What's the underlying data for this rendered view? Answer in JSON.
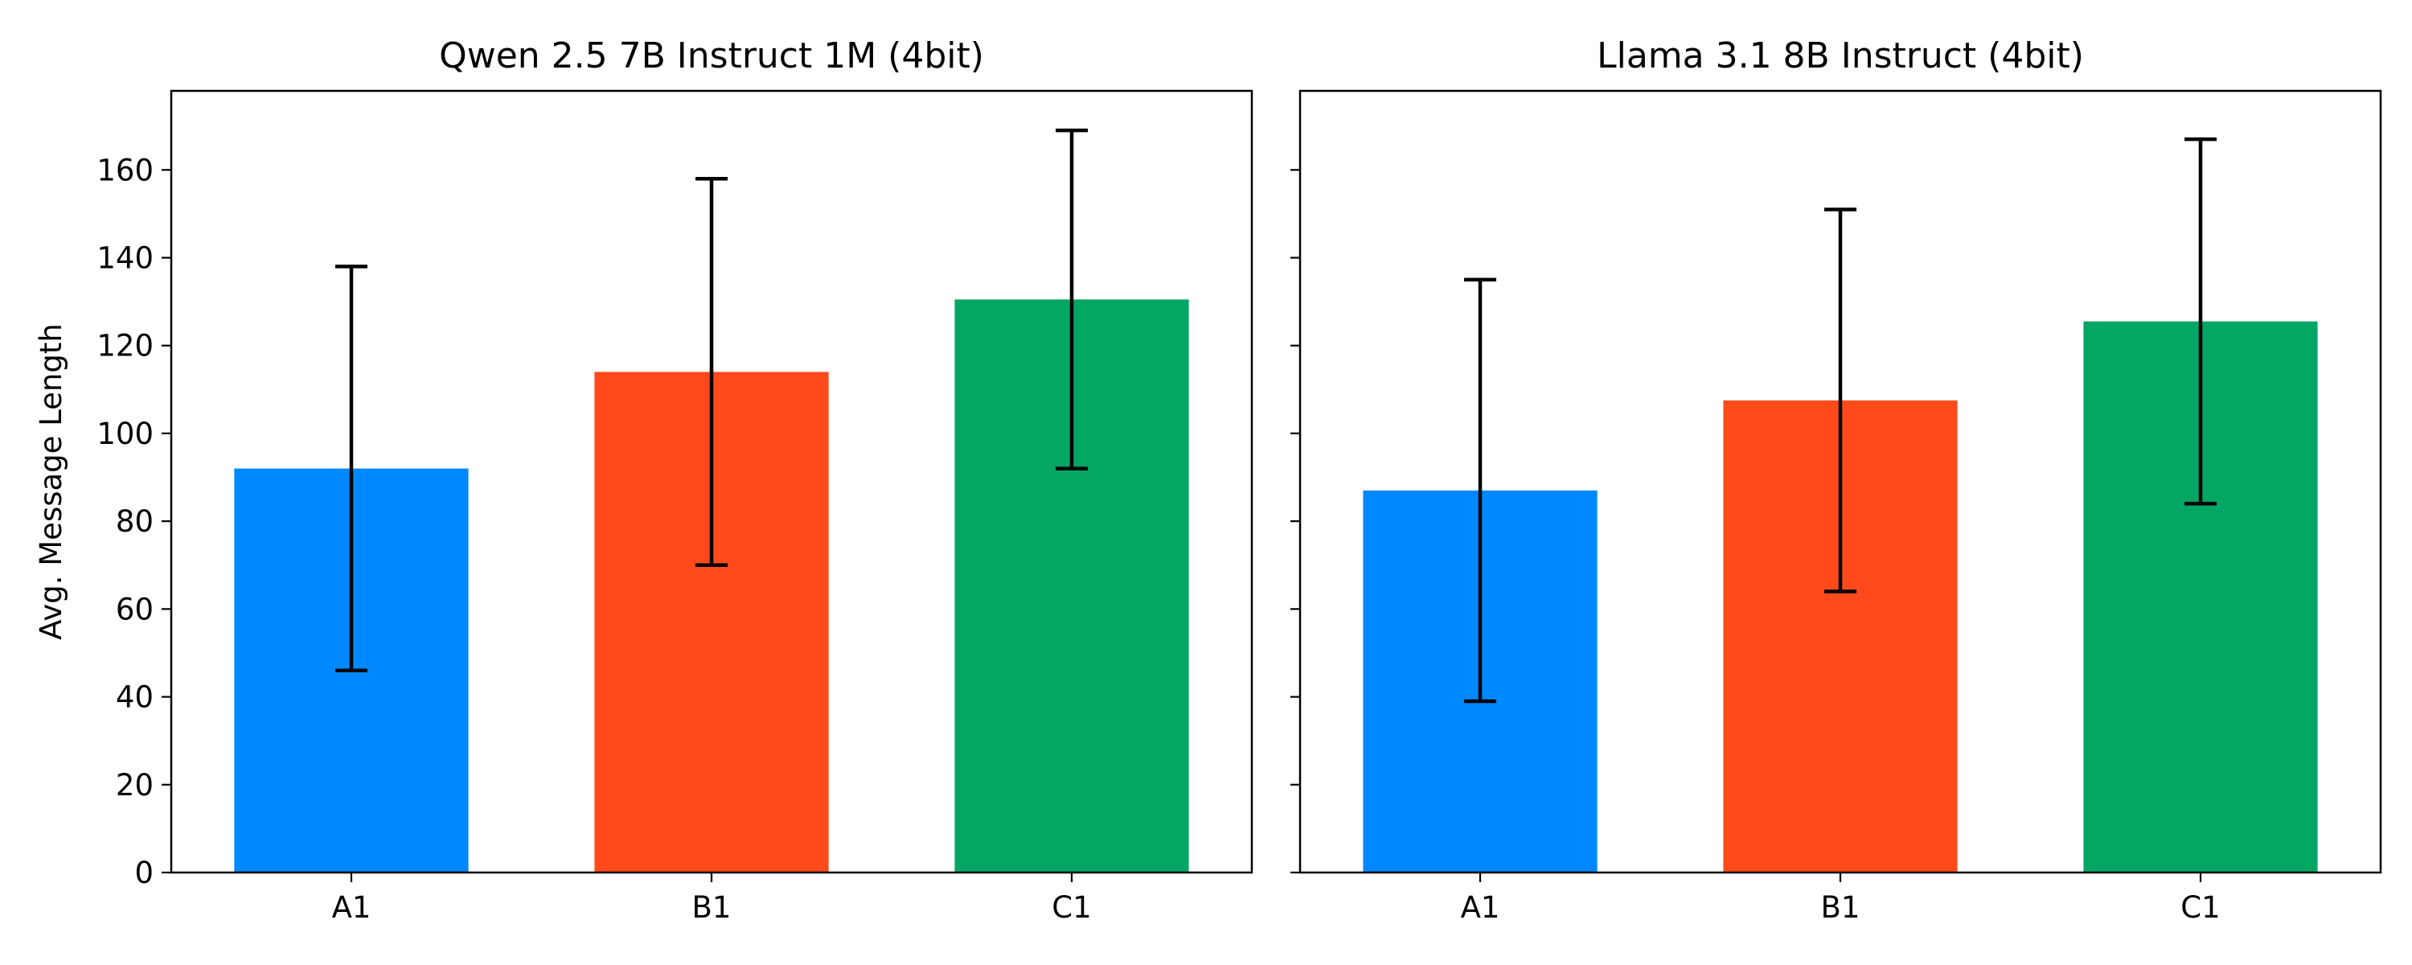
{
  "chart_data": [
    {
      "type": "bar",
      "title": "Qwen 2.5 7B Instruct 1M (4bit)",
      "xlabel": "",
      "ylabel": "Avg. Message Length",
      "categories": [
        "A1",
        "B1",
        "C1"
      ],
      "values": [
        92,
        114,
        130.5
      ],
      "error": [
        46,
        44,
        38.5
      ],
      "colors": [
        "#0088ff",
        "#ff4a1c",
        "#03a663"
      ],
      "ylim": [
        0,
        178
      ],
      "yticks": [
        "0",
        "20",
        "40",
        "60",
        "80",
        "100",
        "120",
        "140",
        "160"
      ],
      "grid": false
    },
    {
      "type": "bar",
      "title": "Llama 3.1 8B Instruct (4bit)",
      "xlabel": "",
      "ylabel": "",
      "categories": [
        "A1",
        "B1",
        "C1"
      ],
      "values": [
        87,
        107.5,
        125.5
      ],
      "error": [
        48,
        43.5,
        41.5
      ],
      "colors": [
        "#0088ff",
        "#ff4a1c",
        "#03a663"
      ],
      "ylim": [
        0,
        178
      ],
      "yticks": [
        "0",
        "20",
        "40",
        "60",
        "80",
        "100",
        "120",
        "140",
        "160"
      ],
      "shared_y": true,
      "grid": false
    }
  ]
}
